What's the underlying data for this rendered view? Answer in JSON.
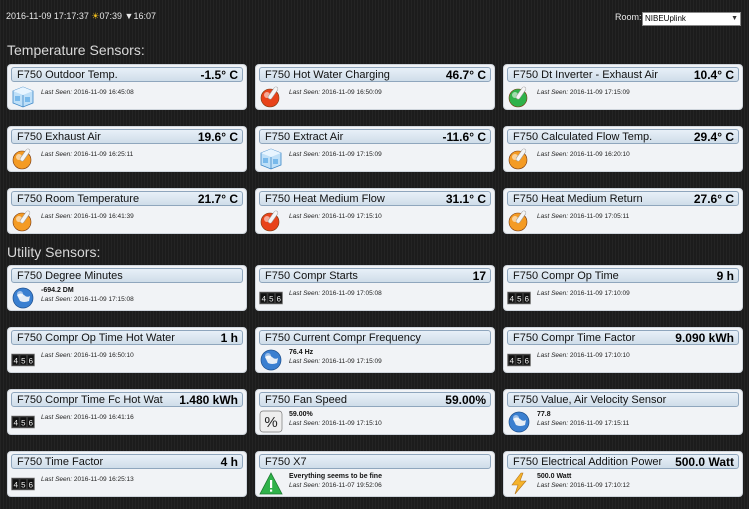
{
  "header": {
    "datetime": "2016-11-09 17:17:37",
    "sunrise_icon": "sun-icon",
    "sunrise": "07:39",
    "sunset_icon": "down-triangle-icon",
    "sunset": "16:07",
    "room_label": "Room:",
    "room_selected": "NIBEUplink"
  },
  "sections": {
    "temperature": "Temperature Sensors:",
    "utility": "Utility Sensors:"
  },
  "last_seen_label": "Last Seen:",
  "temperature_cards": [
    {
      "name": "F750 Outdoor Temp.",
      "value": "-1.5° C",
      "last_seen": "2016-11-09 16:45:08",
      "icon": "ice-cube-icon"
    },
    {
      "name": "F750 Hot Water Charging",
      "value": "46.7° C",
      "last_seen": "2016-11-09 16:50:09",
      "icon": "red-thermometer-icon"
    },
    {
      "name": "F750 Dt Inverter - Exhaust Air",
      "value": "10.4° C",
      "last_seen": "2016-11-09 17:15:09",
      "icon": "green-thermometer-icon"
    },
    {
      "name": "F750 Exhaust Air",
      "value": "19.6° C",
      "last_seen": "2016-11-09 16:25:11",
      "icon": "orange-thermometer-icon"
    },
    {
      "name": "F750 Extract Air",
      "value": "-11.6° C",
      "last_seen": "2016-11-09 17:15:09",
      "icon": "ice-cube-icon"
    },
    {
      "name": "F750 Calculated Flow Temp.",
      "value": "29.4° C",
      "last_seen": "2016-11-09 16:20:10",
      "icon": "orange-thermometer-icon"
    },
    {
      "name": "F750 Room Temperature",
      "value": "21.7° C",
      "last_seen": "2016-11-09 16:41:39",
      "icon": "orange-thermometer-icon"
    },
    {
      "name": "F750 Heat Medium Flow",
      "value": "31.1° C",
      "last_seen": "2016-11-09 17:15:10",
      "icon": "red-thermometer-icon"
    },
    {
      "name": "F750 Heat Medium Return",
      "value": "27.6° C",
      "last_seen": "2016-11-09 17:05:11",
      "icon": "orange-thermometer-icon"
    }
  ],
  "utility_cards": [
    {
      "name": "F750 Degree Minutes",
      "value": "",
      "sub": "-694.2 DM",
      "last_seen": "2016-11-09 17:15:08",
      "icon": "globe-icon"
    },
    {
      "name": "F750 Compr Starts",
      "value": "17",
      "sub": "",
      "last_seen": "2016-11-09 17:05:08",
      "icon": "counter-icon"
    },
    {
      "name": "F750 Compr Op Time",
      "value": "9 h",
      "sub": "",
      "last_seen": "2016-11-09 17:10:09",
      "icon": "counter-icon"
    },
    {
      "name": "F750 Compr Op Time Hot Water",
      "value": "1 h",
      "sub": "",
      "last_seen": "2016-11-09 16:50:10",
      "icon": "counter-icon"
    },
    {
      "name": "F750 Current Compr Frequency",
      "value": "",
      "sub": "76.4 Hz",
      "last_seen": "2016-11-09 17:15:09",
      "icon": "globe-icon"
    },
    {
      "name": "F750 Compr Time Factor",
      "value": "9.090 kWh",
      "sub": "",
      "last_seen": "2016-11-09 17:10:10",
      "icon": "counter-icon"
    },
    {
      "name": "F750 Compr Time Fc Hot Wat",
      "value": "1.480 kWh",
      "sub": "",
      "last_seen": "2016-11-09 16:41:16",
      "icon": "counter-icon"
    },
    {
      "name": "F750 Fan Speed",
      "value": "59.00%",
      "sub": "59.00%",
      "last_seen": "2016-11-09 17:15:10",
      "icon": "percent-icon"
    },
    {
      "name": "F750 Value, Air Velocity Sensor",
      "value": "",
      "sub": "77.8",
      "last_seen": "2016-11-09 17:15:11",
      "icon": "globe-icon"
    },
    {
      "name": "F750 Time Factor",
      "value": "4 h",
      "sub": "",
      "last_seen": "2016-11-09 16:25:13",
      "icon": "counter-icon"
    },
    {
      "name": "F750 X7",
      "value": "",
      "sub": "Everything seems to be fine",
      "last_seen": "2016-11-07 19:52:06",
      "icon": "warning-triangle-icon"
    },
    {
      "name": "F750 Electrical Addition Power",
      "value": "500.0 Watt",
      "sub": "500.0 Watt",
      "last_seen": "2016-11-09 17:10:12",
      "icon": "lightning-icon"
    }
  ],
  "counter_digits": [
    "4",
    "5",
    "6"
  ],
  "colors": {
    "accent": "#4f6f8f",
    "ok": "#2fb24a",
    "hot": "#e8431a",
    "warm": "#f49b24",
    "cold": "#5aa8e6",
    "bolt": "#f5b32c"
  }
}
